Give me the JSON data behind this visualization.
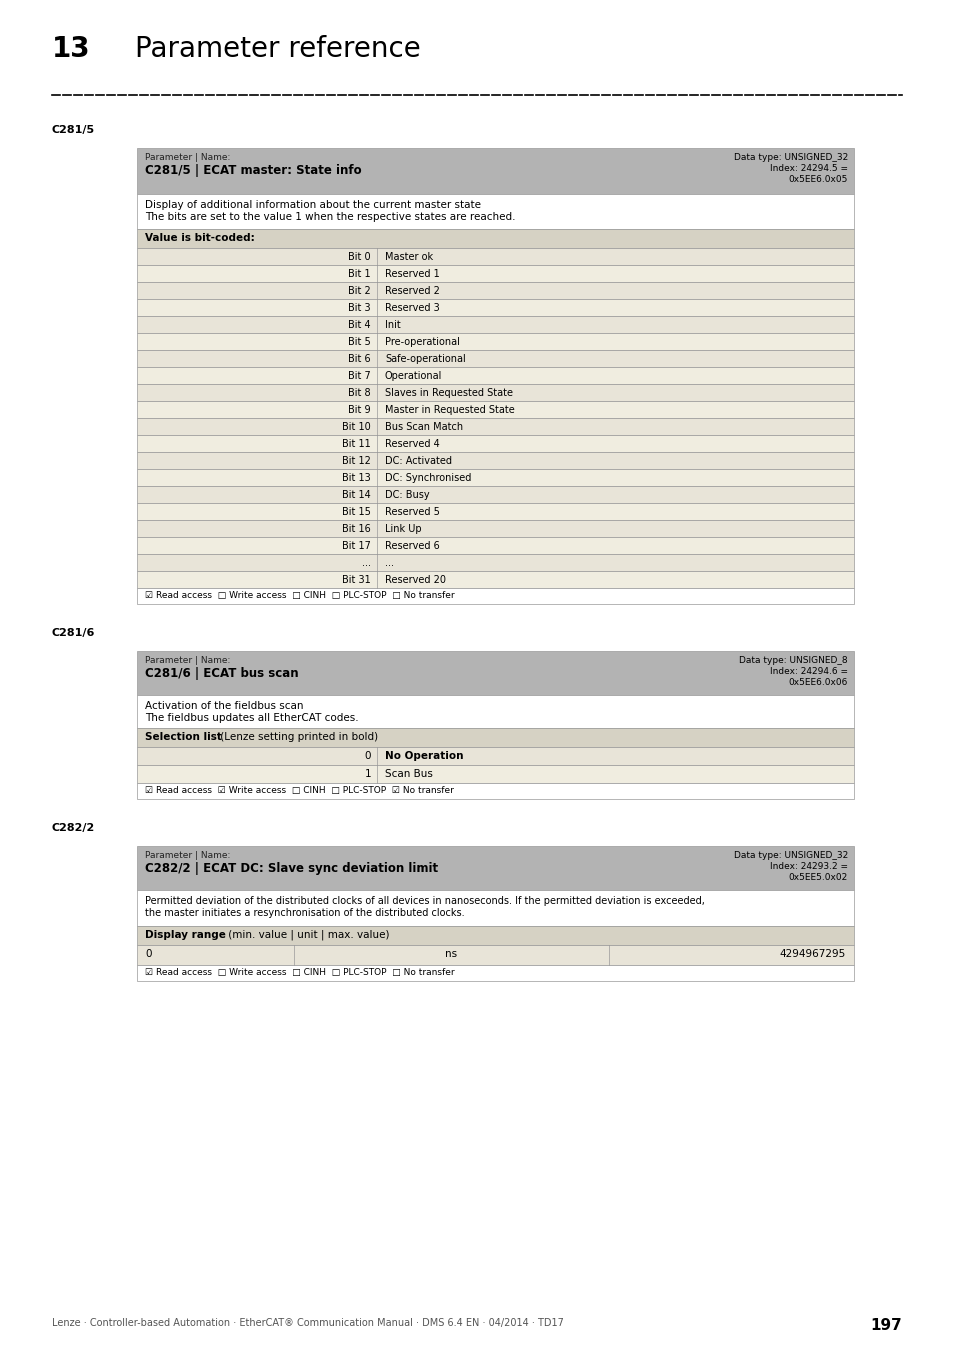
{
  "title_number": "13",
  "title_text": "Parameter reference",
  "section1_label": "C281/5",
  "section2_label": "C281/6",
  "section3_label": "C282/2",
  "table1": {
    "header_left": "Parameter | Name:",
    "header_bold": "C281/5 | ECAT master: State info",
    "header_right_line1": "Data type: UNSIGNED_32",
    "header_right_line2": "Index: 24294.5 =",
    "header_right_line3": "0x5EE6.0x05",
    "desc_line1": "Display of additional information about the current master state",
    "desc_line2": "The bits are set to the value 1 when the respective states are reached.",
    "subheader": "Value is bit-coded:",
    "bits": [
      [
        "Bit 0",
        "Master ok"
      ],
      [
        "Bit 1",
        "Reserved 1"
      ],
      [
        "Bit 2",
        "Reserved 2"
      ],
      [
        "Bit 3",
        "Reserved 3"
      ],
      [
        "Bit 4",
        "Init"
      ],
      [
        "Bit 5",
        "Pre-operational"
      ],
      [
        "Bit 6",
        "Safe-operational"
      ],
      [
        "Bit 7",
        "Operational"
      ],
      [
        "Bit 8",
        "Slaves in Requested State"
      ],
      [
        "Bit 9",
        "Master in Requested State"
      ],
      [
        "Bit 10",
        "Bus Scan Match"
      ],
      [
        "Bit 11",
        "Reserved 4"
      ],
      [
        "Bit 12",
        "DC: Activated"
      ],
      [
        "Bit 13",
        "DC: Synchronised"
      ],
      [
        "Bit 14",
        "DC: Busy"
      ],
      [
        "Bit 15",
        "Reserved 5"
      ],
      [
        "Bit 16",
        "Link Up"
      ],
      [
        "Bit 17",
        "Reserved 6"
      ],
      [
        "...",
        "..."
      ],
      [
        "Bit 31",
        "Reserved 20"
      ]
    ],
    "footer": "☑ Read access  □ Write access  □ CINH  □ PLC-STOP  □ No transfer"
  },
  "table2": {
    "header_left": "Parameter | Name:",
    "header_bold": "C281/6 | ECAT bus scan",
    "header_right_line1": "Data type: UNSIGNED_8",
    "header_right_line2": "Index: 24294.6 =",
    "header_right_line3": "0x5EE6.0x06",
    "desc_line1": "Activation of the fieldbus scan",
    "desc_line2": "The fieldbus updates all EtherCAT codes.",
    "subheader_bold": "Selection list",
    "subheader_normal": " (Lenze setting printed in bold)",
    "rows": [
      [
        "0",
        "No Operation",
        true
      ],
      [
        "1",
        "Scan Bus",
        false
      ]
    ],
    "footer": "☑ Read access  ☑ Write access  □ CINH  □ PLC-STOP  ☑ No transfer"
  },
  "table3": {
    "header_left": "Parameter | Name:",
    "header_bold": "C282/2 | ECAT DC: Slave sync deviation limit",
    "header_right_line1": "Data type: UNSIGNED_32",
    "header_right_line2": "Index: 24293.2 =",
    "header_right_line3": "0x5EE5.0x02",
    "desc_line1": "Permitted deviation of the distributed clocks of all devices in nanoseconds. If the permitted deviation is exceeded,",
    "desc_line2": "the master initiates a resynchronisation of the distributed clocks.",
    "subheader_bold": "Display range",
    "subheader_normal": " (min. value | unit | max. value)",
    "row_val0": "0",
    "row_unit": "ns",
    "row_max": "4294967295",
    "footer": "☑ Read access  □ Write access  □ CINH  □ PLC-STOP  □ No transfer"
  },
  "footer_text": "Lenze · Controller-based Automation · EtherCAT® Communication Manual · DMS 6.4 EN · 04/2014 · TD17",
  "footer_page": "197",
  "header_bg": "#b3b3b3",
  "subheader_bg": "#d6d2c4",
  "row_bg_a": "#e8e4d8",
  "row_bg_b": "#f0ede0",
  "white": "#ffffff",
  "border_color": "#999999"
}
